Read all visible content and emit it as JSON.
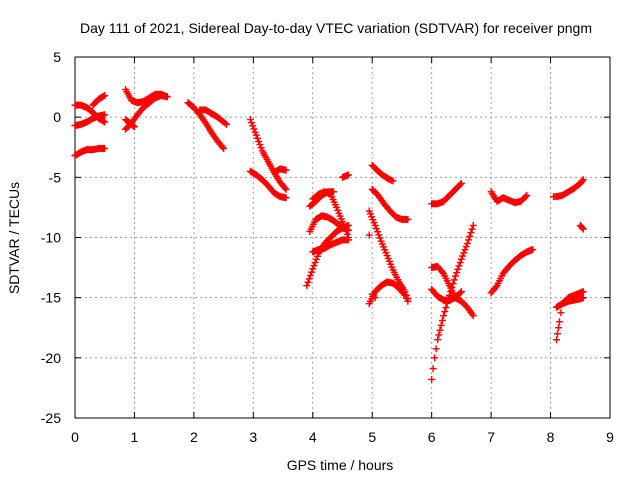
{
  "chart_data": {
    "type": "scatter",
    "title": "Day 111 of 2021, Sidereal Day-to-day VTEC variation (SDTVAR) for receiver pngm",
    "xlabel": "GPS time / hours",
    "ylabel": "SDTVAR / TECUs",
    "xlim": [
      0,
      9
    ],
    "ylim": [
      -25,
      5
    ],
    "xticks": [
      "0",
      "1",
      "2",
      "3",
      "4",
      "5",
      "6",
      "7",
      "8",
      "9"
    ],
    "yticks": [
      "5",
      "0",
      "-5",
      "-10",
      "-15",
      "-20",
      "-25"
    ],
    "grid": true,
    "marker": "+",
    "color": "#ff0000",
    "series": [
      {
        "x": [
          0.0,
          0.1,
          0.2,
          0.3,
          0.4,
          0.5
        ],
        "y": [
          -3.2,
          -2.9,
          -2.7,
          -2.7,
          -2.6,
          -2.6
        ]
      },
      {
        "x": [
          0.0,
          0.1,
          0.2,
          0.3,
          0.4,
          0.5
        ],
        "y": [
          -0.7,
          -0.6,
          -0.4,
          -0.1,
          0.1,
          0.2
        ]
      },
      {
        "x": [
          0.0,
          0.1,
          0.2,
          0.3,
          0.4,
          0.5
        ],
        "y": [
          1.0,
          1.0,
          0.8,
          0.4,
          -0.1,
          -0.4
        ]
      },
      {
        "x": [
          0.3,
          0.4,
          0.5
        ],
        "y": [
          1.0,
          1.5,
          1.8
        ]
      },
      {
        "x": [
          0.85,
          0.95,
          1.05,
          1.15,
          1.25,
          1.35,
          1.45,
          1.55
        ],
        "y": [
          -1.0,
          -0.5,
          0.2,
          0.8,
          1.2,
          1.6,
          1.8,
          1.7
        ]
      },
      {
        "x": [
          0.85,
          0.95,
          1.05,
          1.15,
          1.25,
          1.35,
          1.45,
          1.55
        ],
        "y": [
          2.3,
          1.4,
          1.2,
          1.3,
          1.6,
          1.9,
          1.9,
          1.7
        ]
      },
      {
        "x": [
          0.85,
          0.95,
          1.0
        ],
        "y": [
          -0.2,
          -0.6,
          -0.8
        ]
      },
      {
        "x": [
          1.9,
          2.0,
          2.1,
          2.2,
          2.3,
          2.4,
          2.5
        ],
        "y": [
          1.2,
          0.8,
          0.2,
          -0.5,
          -1.3,
          -2.0,
          -2.6
        ]
      },
      {
        "x": [
          2.1,
          2.2,
          2.3,
          2.4,
          2.5,
          2.55
        ],
        "y": [
          0.6,
          0.6,
          0.3,
          0.0,
          -0.4,
          -0.6
        ]
      },
      {
        "x": [
          2.95,
          3.05,
          3.15,
          3.25,
          3.35,
          3.45,
          3.55
        ],
        "y": [
          -0.2,
          -1.5,
          -2.8,
          -3.7,
          -4.6,
          -5.4,
          -6.0
        ]
      },
      {
        "x": [
          2.95,
          3.05,
          3.15,
          3.25,
          3.35,
          3.45,
          3.55
        ],
        "y": [
          -4.5,
          -4.8,
          -5.2,
          -5.7,
          -6.3,
          -6.6,
          -6.7
        ]
      },
      {
        "x": [
          3.35,
          3.45,
          3.55
        ],
        "y": [
          -4.6,
          -4.3,
          -4.4
        ]
      },
      {
        "x": [
          3.9,
          4.0,
          4.1,
          4.2,
          4.3,
          4.4,
          4.5,
          4.6
        ],
        "y": [
          -14.0,
          -12.6,
          -11.3,
          -10.5,
          -10.0,
          -9.5,
          -9.2,
          -9.0
        ]
      },
      {
        "x": [
          3.95,
          4.05,
          4.15,
          4.25,
          4.35,
          4.45,
          4.55,
          4.6
        ],
        "y": [
          -9.5,
          -8.5,
          -8.2,
          -8.3,
          -8.6,
          -9.0,
          -9.2,
          -9.4
        ]
      },
      {
        "x": [
          4.0,
          4.1,
          4.2,
          4.3,
          4.4,
          4.5,
          4.6
        ],
        "y": [
          -6.8,
          -6.4,
          -6.2,
          -6.4,
          -7.5,
          -8.7,
          -10.0
        ]
      },
      {
        "x": [
          4.0,
          4.1,
          4.2,
          4.3,
          4.4,
          4.5,
          4.6
        ],
        "y": [
          -11.2,
          -11.0,
          -10.9,
          -10.6,
          -10.4,
          -10.2,
          -10.2
        ]
      },
      {
        "x": [
          3.95,
          4.05,
          4.15,
          4.25,
          4.35
        ],
        "y": [
          -7.4,
          -7.0,
          -6.5,
          -6.2,
          -6.2
        ]
      },
      {
        "x": [
          4.5,
          4.6
        ],
        "y": [
          -5.0,
          -4.8
        ]
      },
      {
        "x": [
          4.95,
          5.05,
          5.15,
          5.25,
          5.35,
          5.45,
          5.55,
          5.6
        ],
        "y": [
          -15.5,
          -14.5,
          -14.0,
          -13.7,
          -13.8,
          -14.2,
          -14.8,
          -15.3
        ]
      },
      {
        "x": [
          4.95,
          5.05,
          5.15,
          5.25,
          5.35,
          5.45,
          5.55,
          5.6
        ],
        "y": [
          -7.8,
          -9.0,
          -10.3,
          -11.5,
          -12.7,
          -13.7,
          -14.5,
          -15.1
        ]
      },
      {
        "x": [
          5.0,
          5.1,
          5.2,
          5.3,
          5.4,
          5.5,
          5.6
        ],
        "y": [
          -6.0,
          -6.5,
          -7.2,
          -7.8,
          -8.3,
          -8.5,
          -8.5
        ]
      },
      {
        "x": [
          5.0,
          5.1,
          5.2,
          5.3,
          5.35
        ],
        "y": [
          -4.0,
          -4.5,
          -4.9,
          -5.2,
          -5.3
        ]
      },
      {
        "x": [
          4.95
        ],
        "y": [
          -9.8
        ]
      },
      {
        "x": [
          5.0,
          5.05
        ],
        "y": [
          -14.7,
          -15.0
        ]
      },
      {
        "x": [
          6.0,
          6.05,
          6.1,
          6.2,
          6.3,
          6.4,
          6.5,
          6.6,
          6.7
        ],
        "y": [
          -21.8,
          -20.0,
          -18.5,
          -16.5,
          -14.8,
          -13.2,
          -11.8,
          -10.5,
          -9.0
        ]
      },
      {
        "x": [
          6.0,
          6.1,
          6.2,
          6.3,
          6.4,
          6.5,
          6.6,
          6.7
        ],
        "y": [
          -12.5,
          -12.4,
          -13.0,
          -14.0,
          -15.0,
          -15.3,
          -15.8,
          -16.5
        ]
      },
      {
        "x": [
          6.0,
          6.1,
          6.2,
          6.3,
          6.4,
          6.5
        ],
        "y": [
          -14.3,
          -14.9,
          -15.2,
          -15.2,
          -15.0,
          -14.5
        ]
      },
      {
        "x": [
          6.0,
          6.1,
          6.2,
          6.3,
          6.4,
          6.5
        ],
        "y": [
          -7.2,
          -7.2,
          -7.0,
          -6.5,
          -6.0,
          -5.5
        ]
      },
      {
        "x": [
          7.0,
          7.1,
          7.2,
          7.3,
          7.4,
          7.5,
          7.6,
          7.7
        ],
        "y": [
          -14.6,
          -14.0,
          -13.0,
          -12.4,
          -11.9,
          -11.5,
          -11.2,
          -11.0
        ]
      },
      {
        "x": [
          7.0,
          7.1,
          7.2,
          7.3,
          7.4,
          7.5,
          7.6
        ],
        "y": [
          -6.2,
          -7.0,
          -6.7,
          -6.9,
          -7.1,
          -7.0,
          -6.5
        ]
      },
      {
        "x": [
          8.1,
          8.15,
          8.2,
          8.3,
          8.4,
          8.5,
          8.55
        ],
        "y": [
          -18.5,
          -17.0,
          -15.5,
          -15.0,
          -14.8,
          -14.6,
          -14.5
        ]
      },
      {
        "x": [
          8.1,
          8.2,
          8.3,
          8.4,
          8.5,
          8.55
        ],
        "y": [
          -15.8,
          -15.5,
          -15.3,
          -15.2,
          -15.1,
          -15.0
        ]
      },
      {
        "x": [
          8.05,
          8.1,
          8.2,
          8.3,
          8.4,
          8.5,
          8.55
        ],
        "y": [
          -6.6,
          -6.6,
          -6.5,
          -6.2,
          -5.9,
          -5.5,
          -5.2
        ]
      },
      {
        "x": [
          8.5,
          8.55
        ],
        "y": [
          -9.0,
          -9.3
        ]
      }
    ]
  }
}
